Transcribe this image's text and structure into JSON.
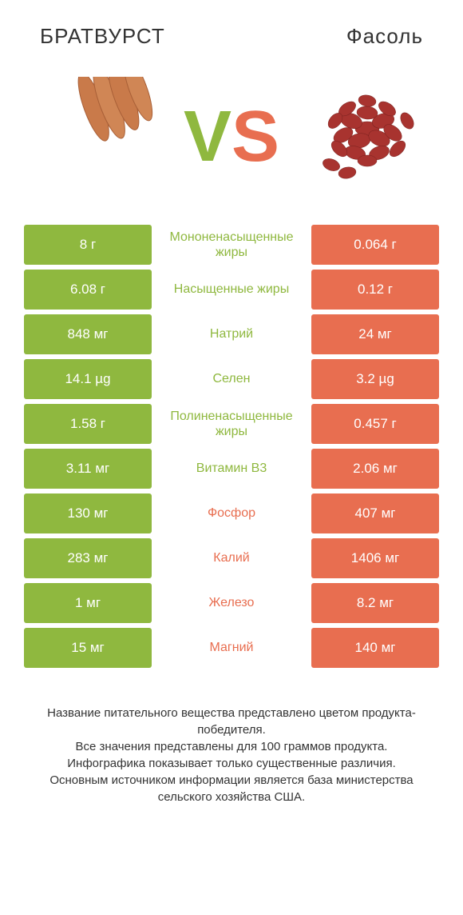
{
  "colors": {
    "green": "#8fb83f",
    "orange": "#e86e50",
    "text": "#333333",
    "white": "#ffffff"
  },
  "header": {
    "left": "БРАТВУРСТ",
    "right": "Фасоль"
  },
  "vs": {
    "v": "V",
    "s": "S"
  },
  "rows": [
    {
      "left": "8 г",
      "mid": "Мононенасыщенные жиры",
      "right": "0.064 г",
      "winner": "left"
    },
    {
      "left": "6.08 г",
      "mid": "Насыщенные жиры",
      "right": "0.12 г",
      "winner": "left"
    },
    {
      "left": "848 мг",
      "mid": "Натрий",
      "right": "24 мг",
      "winner": "left"
    },
    {
      "left": "14.1 µg",
      "mid": "Селен",
      "right": "3.2 µg",
      "winner": "left"
    },
    {
      "left": "1.58 г",
      "mid": "Полиненасыщенные жиры",
      "right": "0.457 г",
      "winner": "left"
    },
    {
      "left": "3.11 мг",
      "mid": "Витамин B3",
      "right": "2.06 мг",
      "winner": "left"
    },
    {
      "left": "130 мг",
      "mid": "Фосфор",
      "right": "407 мг",
      "winner": "right"
    },
    {
      "left": "283 мг",
      "mid": "Калий",
      "right": "1406 мг",
      "winner": "right"
    },
    {
      "left": "1 мг",
      "mid": "Железо",
      "right": "8.2 мг",
      "winner": "right"
    },
    {
      "left": "15 мг",
      "mid": "Магний",
      "right": "140 мг",
      "winner": "right"
    }
  ],
  "footer": {
    "line1": "Название питательного вещества представлено цветом продукта-победителя.",
    "line2": "Все значения представлены для 100 граммов продукта.",
    "line3": "Инфографика показывает только существенные различия.",
    "line4": "Основным источником информации является база министерства сельского хозяйства США."
  }
}
